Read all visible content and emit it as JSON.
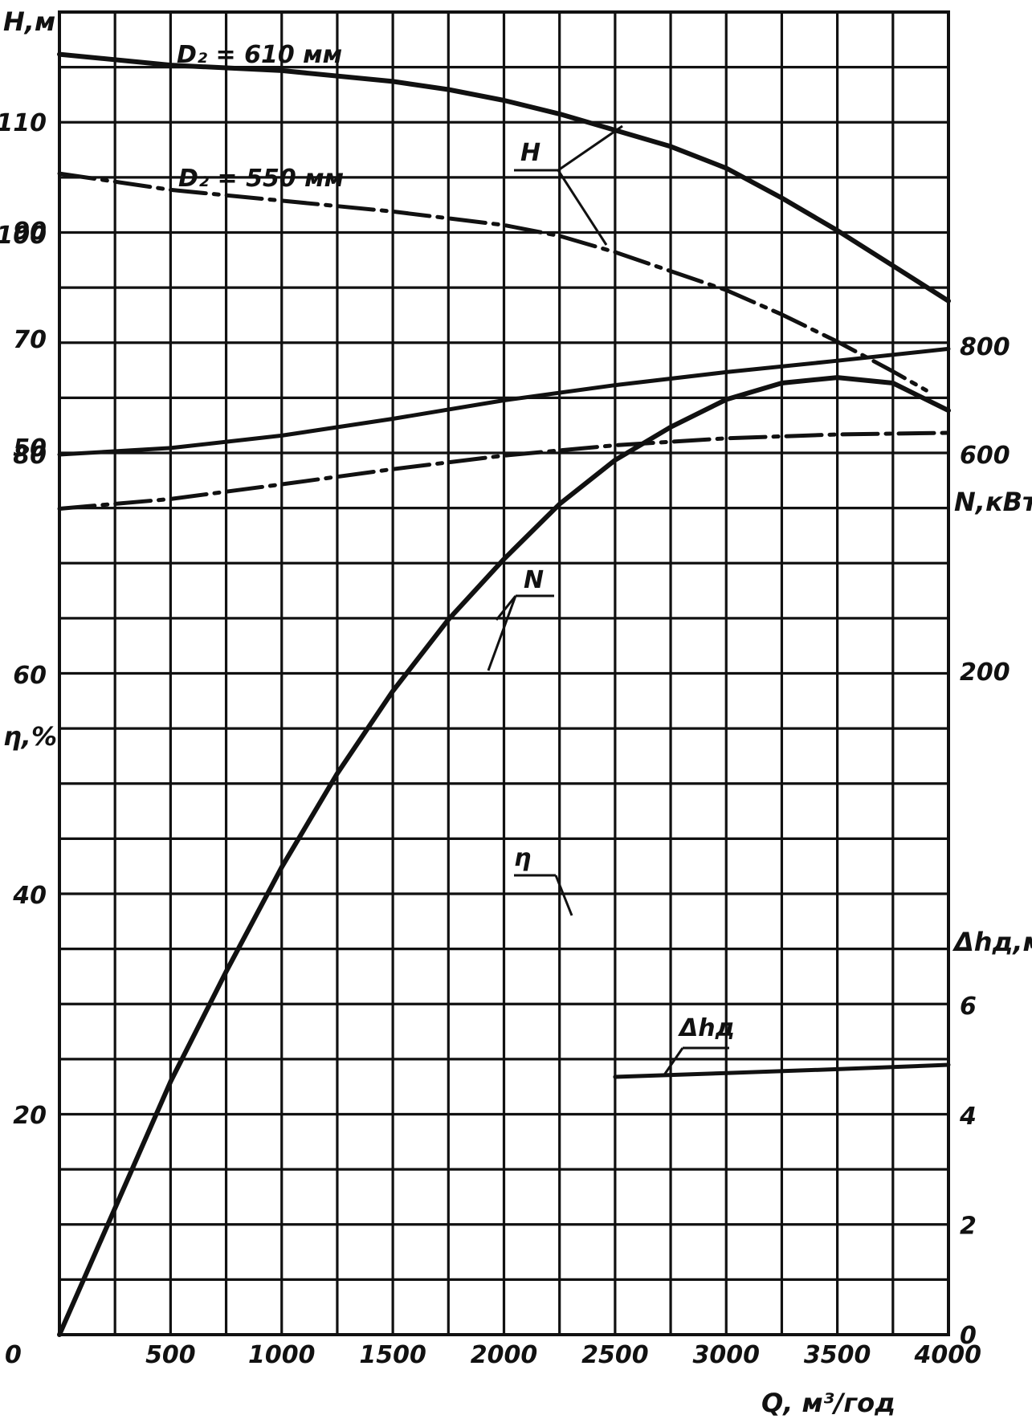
{
  "chart_data": {
    "type": "line",
    "title": "",
    "xlabel": "Q, м³/год",
    "xlim": [
      0,
      4000
    ],
    "x_ticks": [
      0,
      500,
      1000,
      1500,
      2000,
      2500,
      3000,
      3500,
      4000
    ],
    "x_tick_labels": [
      "0",
      "500",
      "1000",
      "1500",
      "2000",
      "2500",
      "3000",
      "3500",
      "4000"
    ],
    "grid": true,
    "axes": {
      "H": {
        "label": "H,м",
        "side": "left",
        "ticks": [
          110,
          90,
          70,
          50
        ],
        "tick_labels": [
          "110",
          "90",
          "70",
          "50"
        ]
      },
      "N": {
        "label": "N,кВт",
        "side": "right",
        "ticks": [
          800,
          600,
          200
        ],
        "tick_labels": [
          "800",
          "600",
          "200"
        ]
      },
      "eta": {
        "label": "η,%",
        "side": "left",
        "ticks": [
          100,
          80,
          60,
          40,
          20
        ],
        "tick_labels": [
          "100",
          "80",
          "60",
          "40",
          "20"
        ]
      },
      "dh": {
        "label": "Δhд,м",
        "side": "right",
        "ticks": [
          6,
          4,
          2,
          0
        ],
        "tick_labels": [
          "6",
          "4",
          "2",
          "0"
        ]
      }
    },
    "curve_labels": {
      "H": "H",
      "N": "N",
      "eta": "η",
      "dh": "Δhд",
      "d610": "D₂ = 610 мм",
      "d550": "D₂ = 550 мм"
    },
    "series": [
      {
        "name": "D₂ = 610 мм",
        "axis": "H",
        "style": "solid",
        "x": [
          0,
          500,
          1000,
          1500,
          1750,
          2000,
          2250,
          2500,
          2750,
          3000,
          3250,
          3500,
          3750,
          4000
        ],
        "y": [
          122.5,
          120.5,
          119.5,
          117.5,
          116,
          114,
          111.5,
          108.5,
          105.5,
          101.5,
          96,
          90,
          83.5,
          77
        ]
      },
      {
        "name": "D₂ = 550 мм",
        "axis": "H",
        "style": "dash-dot",
        "x": [
          0,
          500,
          1000,
          1500,
          2000,
          2250,
          2500,
          2750,
          3000,
          3250,
          3500,
          3750,
          3900
        ],
        "y": [
          100.5,
          97.5,
          95.5,
          93.5,
          91,
          89,
          86,
          82.5,
          79,
          74.5,
          69.5,
          64,
          60.5
        ]
      },
      {
        "name": "N (D₂ = 610 мм)",
        "axis": "N",
        "style": "solid",
        "x": [
          0,
          500,
          1000,
          1500,
          2000,
          2500,
          3000,
          3500,
          4000
        ],
        "y": [
          600,
          612,
          635,
          666,
          700,
          728,
          752,
          773,
          795
        ]
      },
      {
        "name": "N (D₂ = 550 мм)",
        "axis": "N",
        "style": "dash-dot",
        "x": [
          0,
          500,
          1000,
          1500,
          2000,
          2500,
          3000,
          3500,
          4000
        ],
        "y": [
          500,
          518,
          545,
          573,
          598,
          617,
          630,
          637,
          640
        ]
      },
      {
        "name": "η",
        "axis": "eta",
        "style": "solid",
        "x": [
          0,
          250,
          500,
          750,
          1000,
          1250,
          1500,
          1750,
          2000,
          2250,
          2500,
          2750,
          3000,
          3250,
          3500,
          3750,
          4000
        ],
        "y": [
          0,
          11.5,
          23,
          33,
          42.5,
          51,
          58.5,
          65,
          70.5,
          75.5,
          79.5,
          82.5,
          85,
          86.5,
          87,
          86.5,
          84
        ]
      },
      {
        "name": "Δhд",
        "axis": "dh",
        "style": "solid",
        "x": [
          2500,
          3000,
          3500,
          4000
        ],
        "y": [
          4.7,
          4.77,
          4.84,
          4.92
        ]
      }
    ]
  }
}
